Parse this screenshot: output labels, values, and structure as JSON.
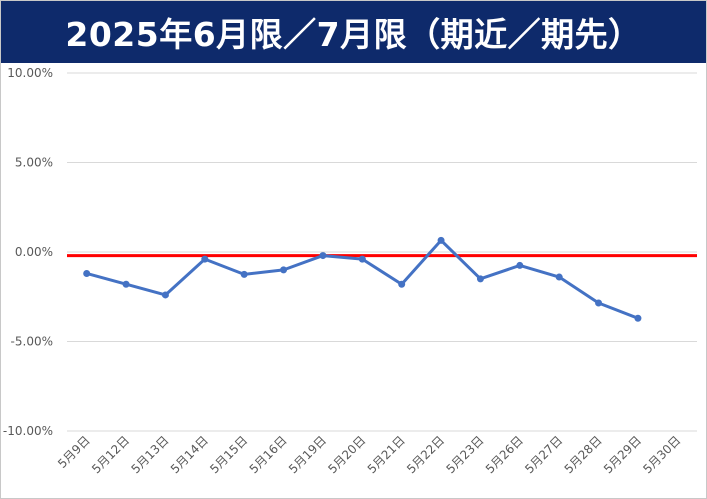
{
  "chart_data": {
    "type": "line",
    "title": "2025年6月限／7月限（期近／期先）",
    "xlabel": "",
    "ylabel": "",
    "categories": [
      "5月9日",
      "5月12日",
      "5月13日",
      "5月14日",
      "5月15日",
      "5月16日",
      "5月19日",
      "5月20日",
      "5月21日",
      "5月22日",
      "5月23日",
      "5月26日",
      "5月27日",
      "5月28日",
      "5月29日",
      "5月30日"
    ],
    "series": [
      {
        "values": [
          -1.2,
          -1.8,
          -2.4,
          -0.4,
          -1.25,
          -1.0,
          -0.2,
          -0.4,
          -1.8,
          0.65,
          -1.5,
          -0.75,
          -1.4,
          -2.85,
          -3.7,
          null
        ],
        "color": "#4472c4"
      }
    ],
    "reference_line": {
      "value": -0.2,
      "color": "#ff0000"
    },
    "yticks": [
      10,
      5,
      0,
      -5,
      -10
    ],
    "ytick_labels": [
      "10.00%",
      "5.00%",
      "0.00%",
      "-5.00%",
      "-10.00%"
    ],
    "ylim": [
      -10,
      10
    ],
    "grid": true,
    "legend": "none",
    "title_bar_color": "#0e2a6b",
    "gridline_color": "#d9d9d9"
  }
}
